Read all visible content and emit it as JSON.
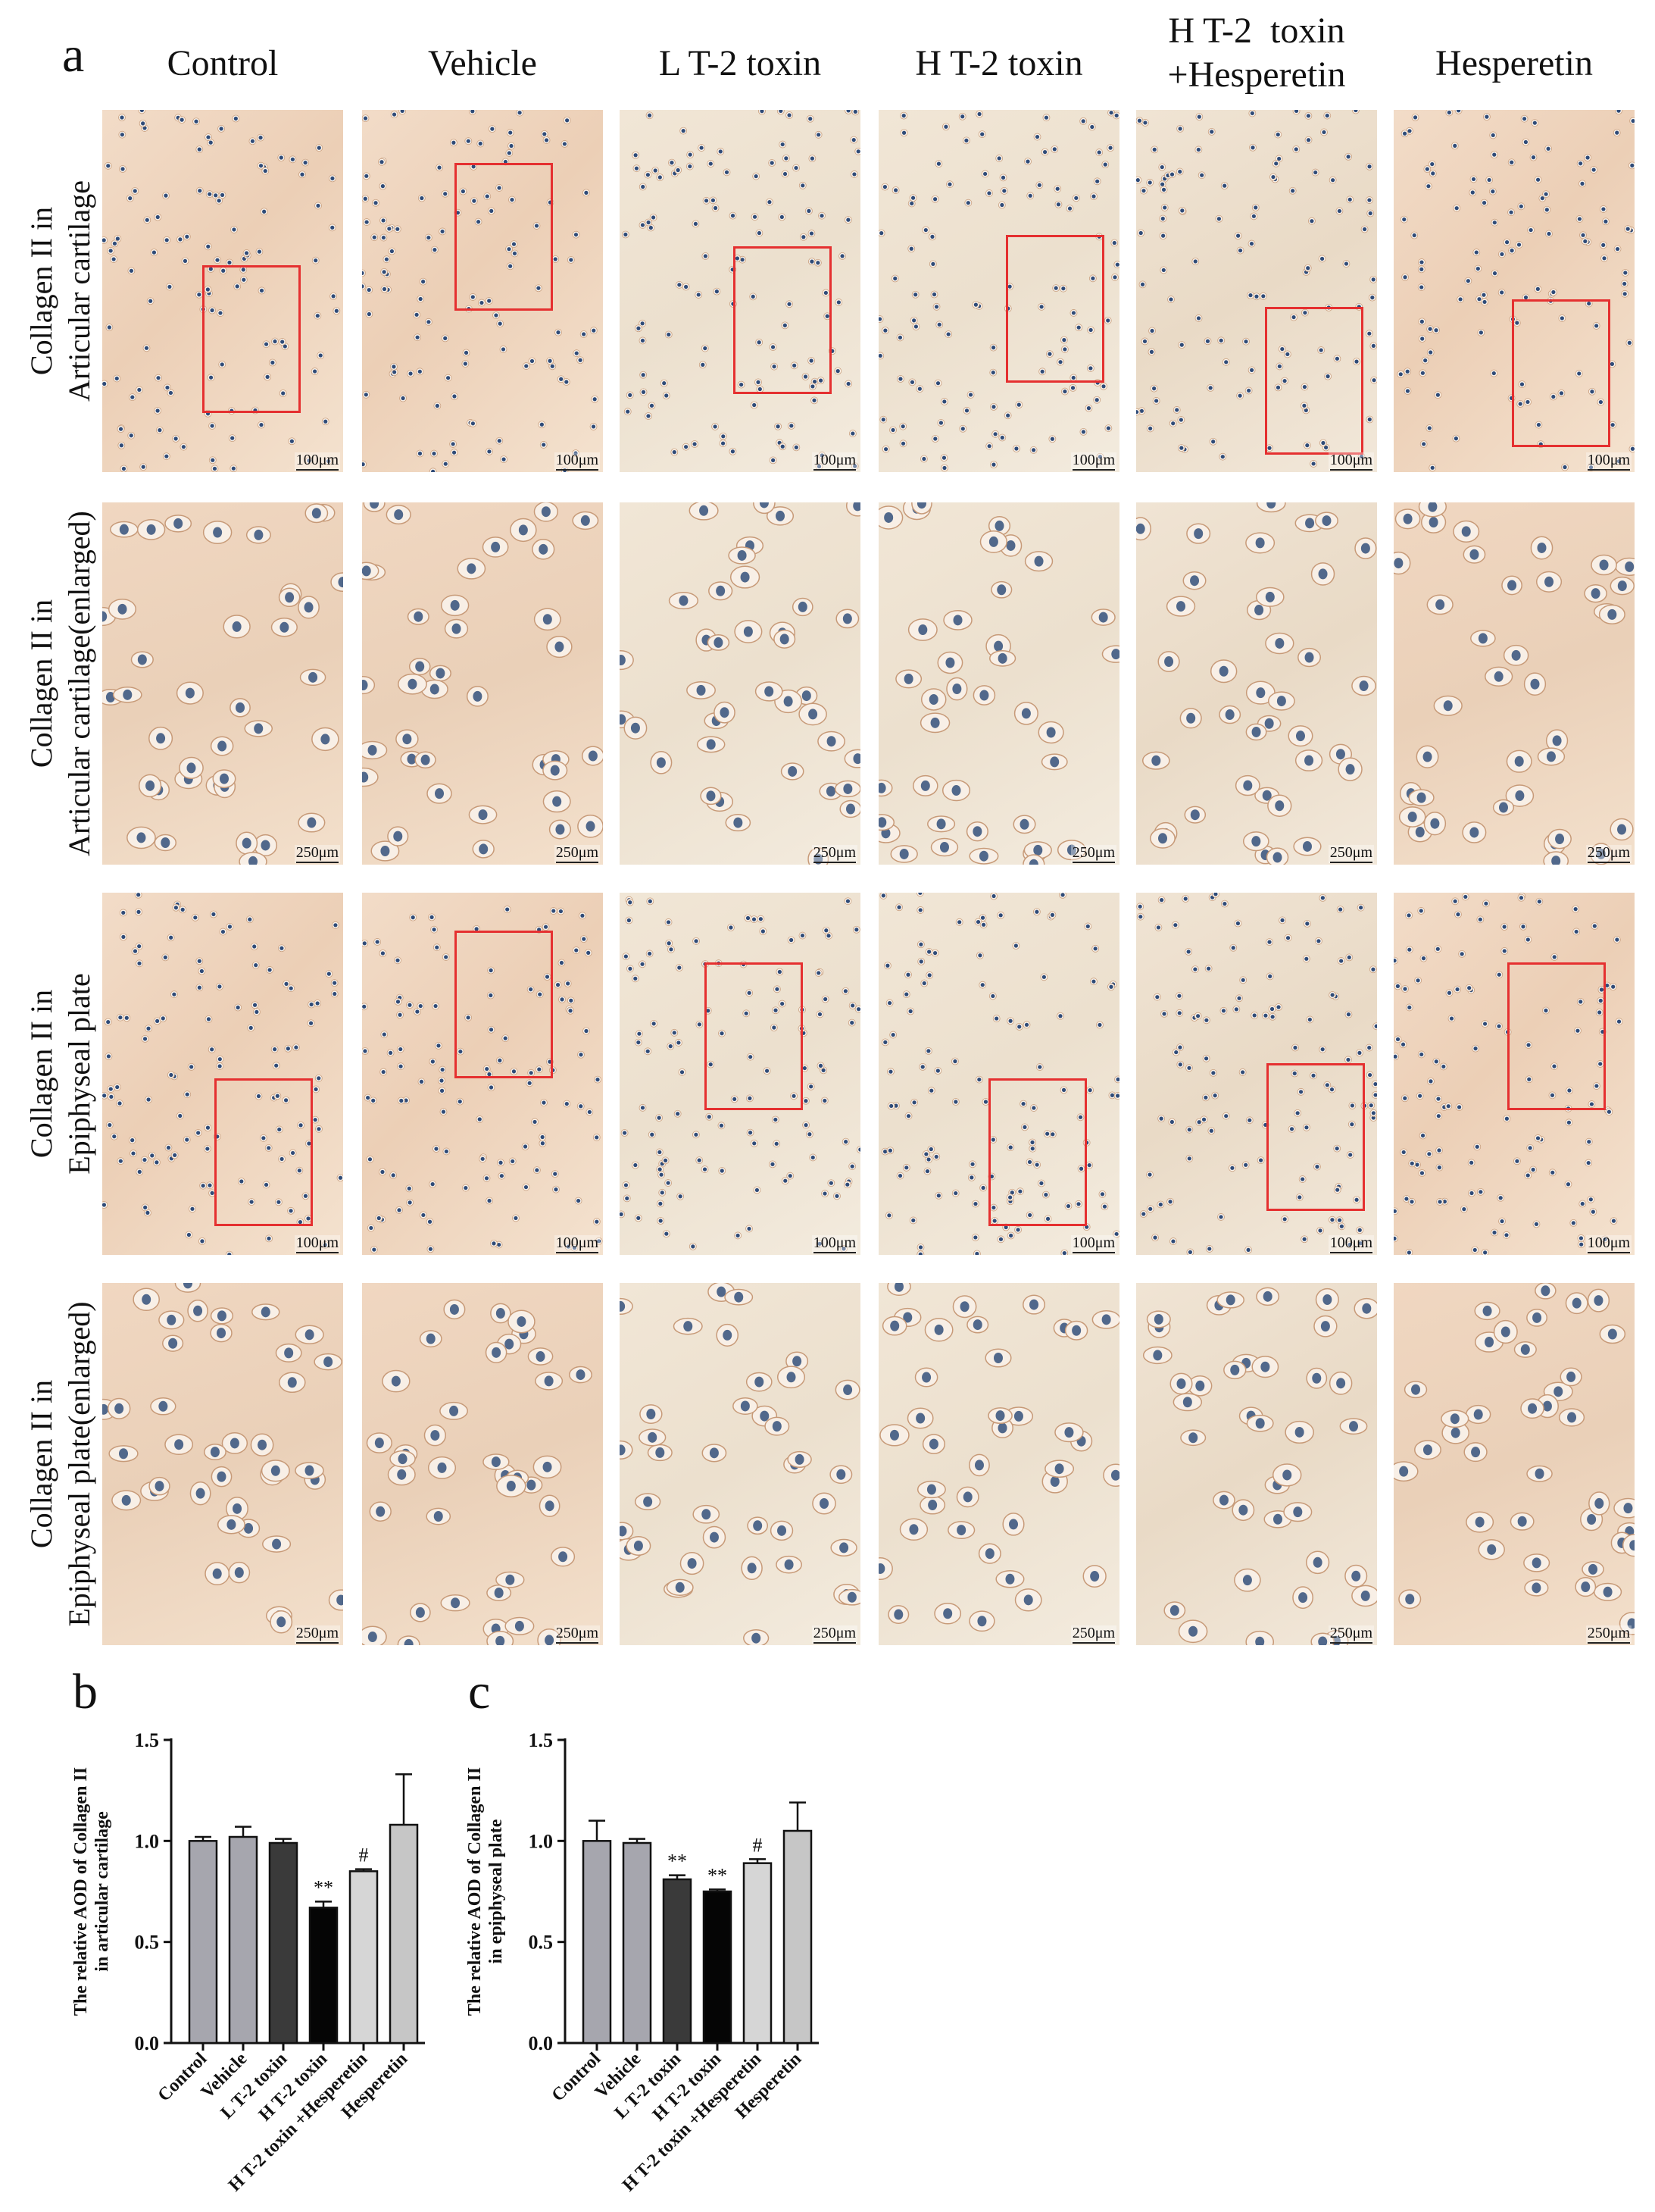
{
  "figure": {
    "panel_labels": {
      "a": "a",
      "b": "b",
      "c": "c"
    },
    "columns": [
      "Control",
      "Vehicle",
      "L T-2 toxin",
      "H T-2 toxin",
      "H T-2  toxin\n+Hesperetin",
      "Hesperetin"
    ],
    "rows": [
      {
        "label": "Collagen II in\nArticular cartilage",
        "scale_bar": "100μm"
      },
      {
        "label": "Collagen II in\nArticular cartilage(enlarged)",
        "scale_bar": "250μm"
      },
      {
        "label": "Collagen II in\nEpiphyseal plate",
        "scale_bar": "100μm"
      },
      {
        "label": "Collagen II in\nEpiphyseal plate(enlarged)",
        "scale_bar": "250μm"
      }
    ]
  },
  "chart_data": [
    {
      "type": "bar",
      "panel": "b",
      "ylabel": "The relative AOD of Collagen II\nin articular cartilage",
      "categories": [
        "Control",
        "Vehicle",
        "L T-2 toxin",
        "H T-2 toxin",
        "H T-2 toxin +Hesperetin",
        "Hesperetin"
      ],
      "values": [
        1.0,
        1.02,
        0.99,
        0.67,
        0.85,
        1.08
      ],
      "errors": [
        0.02,
        0.05,
        0.02,
        0.03,
        0.01,
        0.25
      ],
      "annotations": [
        "",
        "",
        "",
        "**",
        "#",
        ""
      ],
      "bar_colors": [
        "#a6a6ae",
        "#a6a6ae",
        "#3a3a3a",
        "#050505",
        "#d6d6d6",
        "#c6c6c6"
      ],
      "ylim": [
        0.0,
        1.5
      ],
      "yticks": [
        "0.0",
        "0.5",
        "1.0",
        "1.5"
      ]
    },
    {
      "type": "bar",
      "panel": "c",
      "ylabel": "The relative AOD of Collagen II\nin epiphyseal plate",
      "categories": [
        "Control",
        "Vehicle",
        "L T-2 toxin",
        "H T-2 toxin",
        "H T-2 toxin +Hesperetin",
        "Hesperetin"
      ],
      "values": [
        1.0,
        0.99,
        0.81,
        0.75,
        0.89,
        1.05
      ],
      "errors": [
        0.1,
        0.02,
        0.02,
        0.01,
        0.02,
        0.14
      ],
      "annotations": [
        "",
        "",
        "**",
        "**",
        "#",
        ""
      ],
      "bar_colors": [
        "#a6a6ae",
        "#a6a6ae",
        "#3a3a3a",
        "#050505",
        "#d6d6d6",
        "#c6c6c6"
      ],
      "ylim": [
        0.0,
        1.5
      ],
      "yticks": [
        "0.0",
        "0.5",
        "1.0",
        "1.5"
      ]
    }
  ]
}
